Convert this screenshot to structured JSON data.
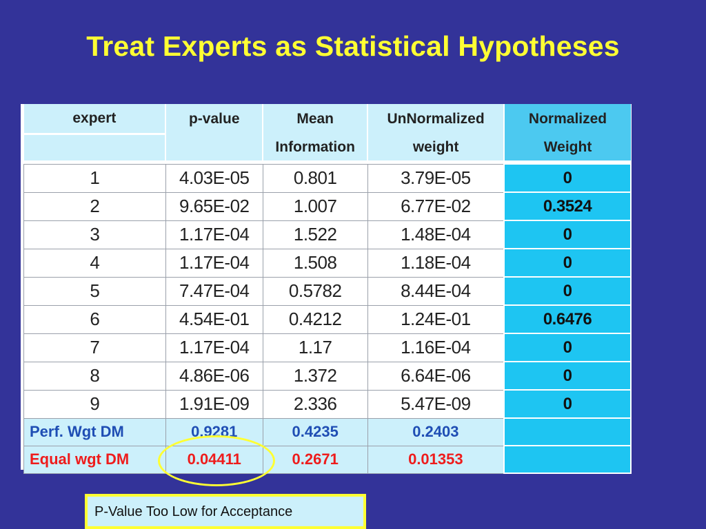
{
  "slide": {
    "title": "Treat Experts as Statistical Hypotheses",
    "callout": "P-Value Too Low for Acceptance"
  },
  "table": {
    "headers": {
      "expert": "expert",
      "pvalue": "p-value",
      "mean_line1": "Mean",
      "mean_line2": "Information",
      "unnorm_line1": "UnNormalized",
      "unnorm_line2": "weight",
      "norm_line1": "Normalized",
      "norm_line2": "Weight"
    },
    "rows": [
      {
        "expert": "1",
        "pvalue": "4.03E-05",
        "mean": "0.801",
        "unnorm": "3.79E-05",
        "norm": "0"
      },
      {
        "expert": "2",
        "pvalue": "9.65E-02",
        "mean": "1.007",
        "unnorm": "6.77E-02",
        "norm": "0.3524"
      },
      {
        "expert": "3",
        "pvalue": "1.17E-04",
        "mean": "1.522",
        "unnorm": "1.48E-04",
        "norm": "0"
      },
      {
        "expert": "4",
        "pvalue": "1.17E-04",
        "mean": "1.508",
        "unnorm": "1.18E-04",
        "norm": "0"
      },
      {
        "expert": "5",
        "pvalue": "7.47E-04",
        "mean": "0.5782",
        "unnorm": "8.44E-04",
        "norm": "0"
      },
      {
        "expert": "6",
        "pvalue": "4.54E-01",
        "mean": "0.4212",
        "unnorm": "1.24E-01",
        "norm": "0.6476"
      },
      {
        "expert": "7",
        "pvalue": "1.17E-04",
        "mean": "1.17",
        "unnorm": "1.16E-04",
        "norm": "0"
      },
      {
        "expert": "8",
        "pvalue": "4.86E-06",
        "mean": "1.372",
        "unnorm": "6.64E-06",
        "norm": "0"
      },
      {
        "expert": "9",
        "pvalue": "1.91E-09",
        "mean": "2.336",
        "unnorm": "5.47E-09",
        "norm": "0"
      }
    ],
    "perf_dm": {
      "label": "Perf. Wgt DM",
      "pvalue": "0.9281",
      "mean": "0.4235",
      "unnorm": "0.2403"
    },
    "equal_dm": {
      "label": "Equal wgt DM",
      "pvalue": "0.04411",
      "mean": "0.2671",
      "unnorm": "0.01353"
    }
  },
  "colors": {
    "background": "#333399",
    "title": "#ffff33",
    "header_cell": "#ccf0fb",
    "normalized_cell": "#1ec5f2",
    "perf_text": "#1f4eb4",
    "equal_text": "#ee1c1c",
    "highlight": "#ffff33"
  }
}
